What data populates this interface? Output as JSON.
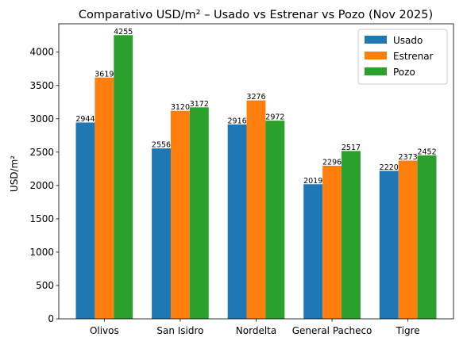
{
  "chart_data": {
    "type": "bar",
    "title": "Comparativo USD/m² – Usado vs Estrenar vs Pozo (Nov 2025)",
    "xlabel": "",
    "ylabel": "USD/m²",
    "categories": [
      "Olivos",
      "San Isidro",
      "Nordelta",
      "General Pacheco",
      "Tigre"
    ],
    "series": [
      {
        "name": "Usado",
        "color": "#1f77b4",
        "values": [
          2944,
          2556,
          2916,
          2019,
          2220
        ]
      },
      {
        "name": "Estrenar",
        "color": "#ff7f0e",
        "values": [
          3619,
          3120,
          3276,
          2296,
          2373
        ]
      },
      {
        "name": "Pozo",
        "color": "#2ca02c",
        "values": [
          4255,
          3172,
          2972,
          2517,
          2452
        ]
      }
    ],
    "ylim": [
      0,
      4425
    ],
    "yticks": [
      0,
      500,
      1000,
      1500,
      2000,
      2500,
      3000,
      3500,
      4000
    ],
    "grid": false,
    "legend_position": "top-right"
  }
}
